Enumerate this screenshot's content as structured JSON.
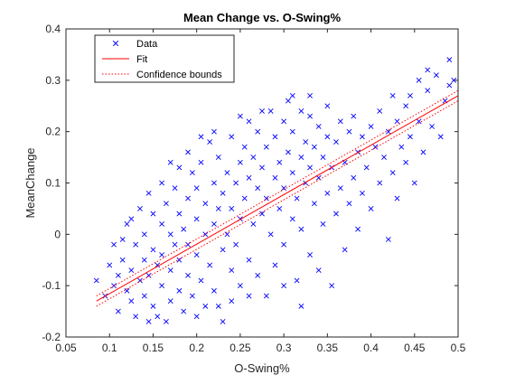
{
  "chart_data": {
    "type": "scatter",
    "title": "Mean Change vs. O-Swing%",
    "xlabel": "O-Swing%",
    "ylabel": "MeanChange",
    "xlim": [
      0.05,
      0.5
    ],
    "ylim": [
      -0.2,
      0.4
    ],
    "xticks": [
      0.05,
      0.1,
      0.15,
      0.2,
      0.25,
      0.3,
      0.35,
      0.4,
      0.45,
      0.5
    ],
    "yticks": [
      -0.2,
      -0.1,
      0,
      0.1,
      0.2,
      0.3,
      0.4
    ],
    "xtick_labels": [
      "0.05",
      "0.1",
      "0.15",
      "0.2",
      "0.25",
      "0.3",
      "0.35",
      "0.4",
      "0.45",
      "0.5"
    ],
    "ytick_labels": [
      "-0.2",
      "-0.1",
      "0",
      "0.1",
      "0.2",
      "0.3",
      "0.4"
    ],
    "grid": false,
    "legend_position": "top-left",
    "legend": [
      {
        "label": "Data",
        "style": "marker-x",
        "color": "#0000ff"
      },
      {
        "label": "Fit",
        "style": "solid-line",
        "color": "#ff0000"
      },
      {
        "label": "Confidence bounds",
        "style": "dotted-line",
        "color": "#ff0000"
      }
    ],
    "series": [
      {
        "label_ref": "Data",
        "marker": "x",
        "color": "#0000ff",
        "points": [
          [
            0.085,
            -0.09
          ],
          [
            0.095,
            -0.12
          ],
          [
            0.1,
            -0.06
          ],
          [
            0.105,
            -0.02
          ],
          [
            0.11,
            -0.15
          ],
          [
            0.11,
            -0.08
          ],
          [
            0.115,
            -0.05
          ],
          [
            0.12,
            -0.11
          ],
          [
            0.12,
            0.02
          ],
          [
            0.125,
            -0.07
          ],
          [
            0.125,
            -0.13
          ],
          [
            0.13,
            -0.02
          ],
          [
            0.13,
            -0.16
          ],
          [
            0.135,
            -0.09
          ],
          [
            0.14,
            -0.12
          ],
          [
            0.14,
            0.0
          ],
          [
            0.14,
            -0.05
          ],
          [
            0.145,
            -0.17
          ],
          [
            0.145,
            -0.08
          ],
          [
            0.15,
            -0.03
          ],
          [
            0.15,
            0.04
          ],
          [
            0.15,
            -0.14
          ],
          [
            0.155,
            -0.06
          ],
          [
            0.155,
            -0.16
          ],
          [
            0.16,
            0.02
          ],
          [
            0.16,
            -0.1
          ],
          [
            0.16,
            -0.04
          ],
          [
            0.165,
            -0.17
          ],
          [
            0.165,
            0.06
          ],
          [
            0.17,
            -0.07
          ],
          [
            0.17,
            -0.13
          ],
          [
            0.17,
            0.0
          ],
          [
            0.175,
            -0.02
          ],
          [
            0.175,
            0.09
          ],
          [
            0.18,
            -0.11
          ],
          [
            0.18,
            0.04
          ],
          [
            0.18,
            -0.05
          ],
          [
            0.185,
            -0.15
          ],
          [
            0.185,
            0.01
          ],
          [
            0.19,
            0.07
          ],
          [
            0.19,
            -0.08
          ],
          [
            0.19,
            -0.02
          ],
          [
            0.195,
            0.12
          ],
          [
            0.195,
            -0.12
          ],
          [
            0.2,
            0.03
          ],
          [
            0.2,
            -0.04
          ],
          [
            0.2,
            0.09
          ],
          [
            0.205,
            -0.09
          ],
          [
            0.205,
            0.14
          ],
          [
            0.21,
            0.0
          ],
          [
            0.21,
            -0.14
          ],
          [
            0.21,
            0.06
          ],
          [
            0.215,
            0.18
          ],
          [
            0.215,
            -0.06
          ],
          [
            0.22,
            0.02
          ],
          [
            0.22,
            0.1
          ],
          [
            0.22,
            -0.11
          ],
          [
            0.225,
            0.05
          ],
          [
            0.225,
            0.15
          ],
          [
            0.23,
            -0.03
          ],
          [
            0.23,
            0.08
          ],
          [
            0.23,
            -0.17
          ],
          [
            0.235,
            0.12
          ],
          [
            0.235,
            0.0
          ],
          [
            0.24,
            0.19
          ],
          [
            0.24,
            -0.07
          ],
          [
            0.24,
            0.05
          ],
          [
            0.245,
            0.1
          ],
          [
            0.245,
            -0.02
          ],
          [
            0.25,
            0.14
          ],
          [
            0.25,
            0.03
          ],
          [
            0.25,
            -0.1
          ],
          [
            0.255,
            0.17
          ],
          [
            0.255,
            0.07
          ],
          [
            0.26,
            -0.05
          ],
          [
            0.26,
            0.11
          ],
          [
            0.26,
            0.22
          ],
          [
            0.265,
            0.02
          ],
          [
            0.265,
            0.15
          ],
          [
            0.27,
            -0.08
          ],
          [
            0.27,
            0.09
          ],
          [
            0.27,
            0.2
          ],
          [
            0.275,
            0.04
          ],
          [
            0.275,
            0.13
          ],
          [
            0.28,
            -0.12
          ],
          [
            0.28,
            0.17
          ],
          [
            0.28,
            0.07
          ],
          [
            0.285,
            0.24
          ],
          [
            0.285,
            0.0
          ],
          [
            0.29,
            0.11
          ],
          [
            0.29,
            0.19
          ],
          [
            0.29,
            -0.06
          ],
          [
            0.295,
            0.14
          ],
          [
            0.295,
            0.05
          ],
          [
            0.3,
            0.22
          ],
          [
            0.3,
            0.09
          ],
          [
            0.3,
            -0.02
          ],
          [
            0.305,
            0.16
          ],
          [
            0.305,
            0.26
          ],
          [
            0.31,
            0.03
          ],
          [
            0.31,
            0.12
          ],
          [
            0.31,
            0.2
          ],
          [
            0.315,
            -0.09
          ],
          [
            0.315,
            0.07
          ],
          [
            0.32,
            0.15
          ],
          [
            0.32,
            0.24
          ],
          [
            0.32,
            0.01
          ],
          [
            0.325,
            0.1
          ],
          [
            0.325,
            0.18
          ],
          [
            0.33,
            -0.04
          ],
          [
            0.33,
            0.13
          ],
          [
            0.33,
            0.23
          ],
          [
            0.335,
            0.06
          ],
          [
            0.335,
            0.17
          ],
          [
            0.34,
            0.21
          ],
          [
            0.34,
            -0.07
          ],
          [
            0.34,
            0.11
          ],
          [
            0.345,
            0.02
          ],
          [
            0.345,
            0.15
          ],
          [
            0.35,
            0.19
          ],
          [
            0.35,
            0.08
          ],
          [
            0.35,
            0.25
          ],
          [
            0.355,
            -0.1
          ],
          [
            0.355,
            0.13
          ],
          [
            0.36,
            0.04
          ],
          [
            0.36,
            0.18
          ],
          [
            0.365,
            0.22
          ],
          [
            0.365,
            0.09
          ],
          [
            0.37,
            0.14
          ],
          [
            0.37,
            -0.03
          ],
          [
            0.375,
            0.2
          ],
          [
            0.375,
            0.06
          ],
          [
            0.38,
            0.11
          ],
          [
            0.38,
            0.23
          ],
          [
            0.385,
            0.16
          ],
          [
            0.385,
            0.01
          ],
          [
            0.39,
            0.19
          ],
          [
            0.39,
            0.08
          ],
          [
            0.395,
            0.13
          ],
          [
            0.4,
            0.21
          ],
          [
            0.4,
            0.05
          ],
          [
            0.405,
            0.17
          ],
          [
            0.41,
            0.1
          ],
          [
            0.41,
            0.24
          ],
          [
            0.415,
            0.15
          ],
          [
            0.42,
            0.2
          ],
          [
            0.42,
            -0.01
          ],
          [
            0.425,
            0.12
          ],
          [
            0.43,
            0.22
          ],
          [
            0.43,
            0.07
          ],
          [
            0.435,
            0.17
          ],
          [
            0.44,
            0.25
          ],
          [
            0.44,
            0.14
          ],
          [
            0.445,
            0.19
          ],
          [
            0.45,
            0.1
          ],
          [
            0.455,
            0.22
          ],
          [
            0.455,
            0.3
          ],
          [
            0.46,
            0.16
          ],
          [
            0.465,
            0.28
          ],
          [
            0.47,
            0.21
          ],
          [
            0.475,
            0.31
          ],
          [
            0.48,
            0.19
          ],
          [
            0.485,
            0.26
          ],
          [
            0.49,
            0.34
          ],
          [
            0.49,
            0.29
          ],
          [
            0.495,
            0.3
          ],
          [
            0.465,
            0.32
          ],
          [
            0.445,
            0.27
          ],
          [
            0.425,
            0.27
          ],
          [
            0.22,
            0.2
          ],
          [
            0.205,
            0.19
          ],
          [
            0.275,
            0.24
          ],
          [
            0.25,
            0.23
          ],
          [
            0.31,
            0.27
          ],
          [
            0.33,
            0.27
          ],
          [
            0.24,
            -0.13
          ],
          [
            0.26,
            -0.12
          ],
          [
            0.225,
            -0.14
          ],
          [
            0.3,
            -0.1
          ],
          [
            0.32,
            -0.14
          ],
          [
            0.19,
            0.16
          ],
          [
            0.18,
            0.13
          ],
          [
            0.17,
            0.14
          ],
          [
            0.16,
            0.1
          ],
          [
            0.145,
            0.08
          ],
          [
            0.135,
            0.05
          ],
          [
            0.125,
            0.03
          ],
          [
            0.115,
            -0.01
          ],
          [
            0.105,
            -0.1
          ],
          [
            0.2,
            -0.16
          ]
        ]
      },
      {
        "label_ref": "Fit",
        "type": "line",
        "color": "#ff0000",
        "x": [
          0.085,
          0.5
        ],
        "y": [
          -0.13,
          0.27
        ]
      },
      {
        "label_ref": "Confidence bounds",
        "type": "line",
        "style": "dotted",
        "color": "#ff0000",
        "upper": {
          "x": [
            0.085,
            0.5
          ],
          "y": [
            -0.12,
            0.28
          ]
        },
        "lower": {
          "x": [
            0.085,
            0.5
          ],
          "y": [
            -0.14,
            0.26
          ]
        }
      }
    ]
  }
}
